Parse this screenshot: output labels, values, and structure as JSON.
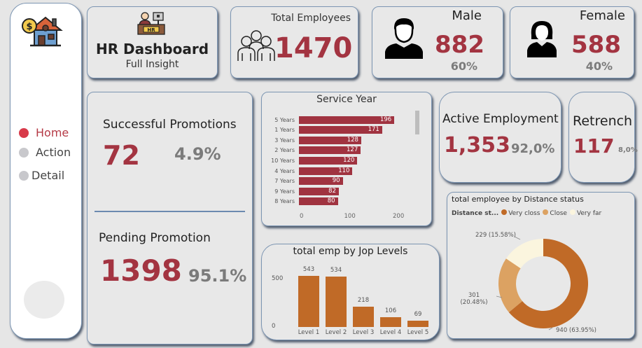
{
  "sidebar": {
    "logo_icon": "house-dollar-icon",
    "nav": [
      {
        "label": "Home",
        "active": true
      },
      {
        "label": "Action",
        "active": false
      },
      {
        "label": "Detail",
        "active": false
      }
    ]
  },
  "header": {
    "icon": "hr-desk-icon",
    "title": "HR Dashboard",
    "subtitle": "Full Insight"
  },
  "kpis": {
    "total_employees": {
      "label": "Total Employees",
      "value": "1470",
      "icon": "group-people-icon"
    },
    "male": {
      "label": "Male",
      "value": "882",
      "pct": "60%",
      "icon": "male-user-icon"
    },
    "female": {
      "label": "Female",
      "value": "588",
      "pct": "40%",
      "icon": "female-user-icon"
    },
    "successful_promotions": {
      "label": "Successful Promotions",
      "value": "72",
      "pct": "4.9%"
    },
    "pending_promotion": {
      "label": "Pending Promotion",
      "value": "1398",
      "pct": "95.1%"
    },
    "active_employment": {
      "label": "Active Employment",
      "value": "1,353",
      "pct": "92,0%"
    },
    "retrench": {
      "label": "Retrench",
      "value": "117",
      "pct": "8,0%"
    }
  },
  "colors": {
    "accent_red": "#a33441",
    "bar_red": "#a03340",
    "bar_orange": "#c06a27",
    "close": "#dca262",
    "very_far": "#fbf5de",
    "nav_active": "#d83a4a"
  },
  "chart_data": [
    {
      "type": "bar",
      "orientation": "horizontal",
      "title": "Service Year",
      "categories": [
        "5 Years",
        "1 Years",
        "3 Years",
        "2 Years",
        "10 Years",
        "4 Years",
        "7 Years",
        "9 Years",
        "8 Years"
      ],
      "values": [
        196,
        171,
        128,
        127,
        120,
        110,
        90,
        82,
        80
      ],
      "xticks": [
        "0",
        "100",
        "200"
      ],
      "xlim": [
        0,
        230
      ]
    },
    {
      "type": "bar",
      "title": "total emp by Jop Levels",
      "categories": [
        "Level 1",
        "Level 2",
        "Level 3",
        "Level 4",
        "Level 5"
      ],
      "values": [
        543,
        534,
        218,
        106,
        69
      ],
      "yticks": [
        "0",
        "500"
      ],
      "ylim": [
        0,
        600
      ]
    },
    {
      "type": "pie",
      "subtype": "donut",
      "title": "total employee by Distance status",
      "legend_title": "Distance st...",
      "categories": [
        "Very closs",
        "Close",
        "Very far"
      ],
      "values": [
        940,
        301,
        229
      ],
      "labels": [
        "940 (63.95%)",
        "301 (20.48%)",
        "229 (15.58%)"
      ],
      "percent": [
        63.95,
        20.48,
        15.58
      ]
    }
  ]
}
